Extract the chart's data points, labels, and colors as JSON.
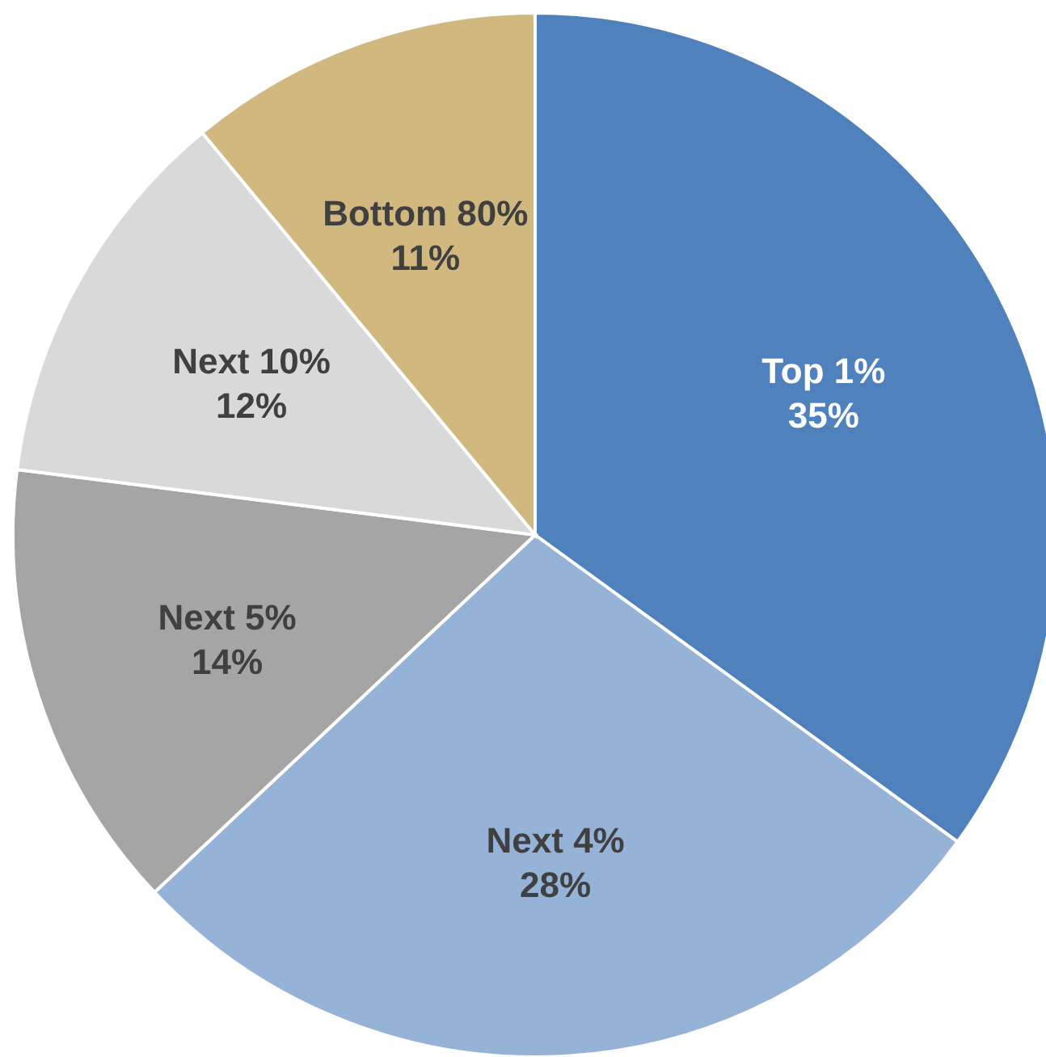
{
  "chart_data": {
    "type": "pie",
    "categories": [
      "Top 1%",
      "Next 4%",
      "Next 5%",
      "Next 10%",
      "Bottom 80%"
    ],
    "values": [
      35,
      28,
      14,
      12,
      11
    ],
    "value_labels": [
      "35%",
      "28%",
      "14%",
      "12%",
      "11%"
    ],
    "colors": [
      "#4f81bd",
      "#95b3d7",
      "#a5a5a5",
      "#d9d9d9",
      "#d0b87e"
    ]
  }
}
